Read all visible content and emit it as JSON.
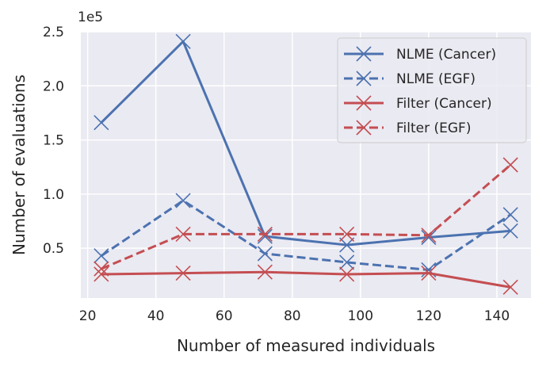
{
  "chart_data": {
    "type": "line",
    "xlabel": "Number of measured individuals",
    "ylabel": "Number of evaluations",
    "y_offset_label": "1e5",
    "xlim": [
      18,
      150
    ],
    "ylim": [
      0.04,
      2.5
    ],
    "x_ticks": [
      20,
      40,
      60,
      80,
      100,
      120,
      140
    ],
    "y_ticks": [
      0.5,
      1.0,
      1.5,
      2.0,
      2.5
    ],
    "y_tick_labels": [
      "0.5",
      "1.0",
      "1.5",
      "2.0",
      "2.5"
    ],
    "grid": true,
    "legend_position": "top-right",
    "x": [
      24,
      48,
      72,
      96,
      120,
      144
    ],
    "series": [
      {
        "name": "NLME (Cancer)",
        "color": "#4c72b0",
        "linestyle": "solid",
        "marker": "x",
        "values": [
          1.66,
          2.41,
          0.61,
          0.53,
          0.6,
          0.66
        ]
      },
      {
        "name": "NLME (EGF)",
        "color": "#4c72b0",
        "linestyle": "dashed",
        "marker": "x",
        "values": [
          0.43,
          0.94,
          0.45,
          0.37,
          0.3,
          0.81
        ]
      },
      {
        "name": "Filter (Cancer)",
        "color": "#c44e52",
        "linestyle": "solid",
        "marker": "x",
        "values": [
          0.26,
          0.27,
          0.28,
          0.26,
          0.27,
          0.14
        ]
      },
      {
        "name": "Filter (EGF)",
        "color": "#c44e52",
        "linestyle": "dashed",
        "marker": "x",
        "values": [
          0.31,
          0.63,
          0.63,
          0.63,
          0.62,
          1.27
        ]
      }
    ]
  }
}
